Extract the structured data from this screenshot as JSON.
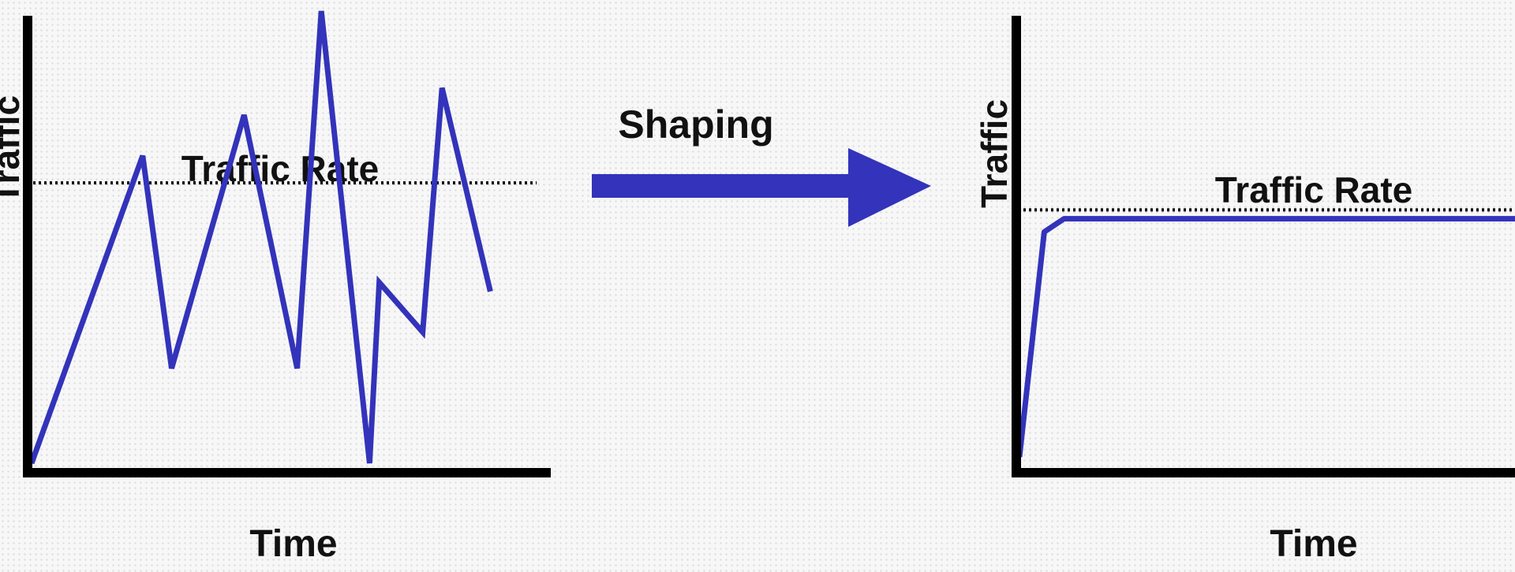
{
  "colors": {
    "line": "#3333bb",
    "axis": "#000000",
    "rate_line": "#000000",
    "arrow": "#3333bb"
  },
  "arrow_label": "Shaping",
  "before": {
    "y_axis_label": "Traffic",
    "x_axis_label": "Time",
    "rate_label": "Traffic Rate",
    "rate_level": 0.62,
    "traffic": [
      [
        0.0,
        0.0
      ],
      [
        0.23,
        0.68
      ],
      [
        0.29,
        0.21
      ],
      [
        0.44,
        0.77
      ],
      [
        0.55,
        0.21
      ],
      [
        0.6,
        1.0
      ],
      [
        0.7,
        0.0
      ],
      [
        0.72,
        0.4
      ],
      [
        0.81,
        0.29
      ],
      [
        0.85,
        0.83
      ],
      [
        0.95,
        0.38
      ]
    ]
  },
  "after": {
    "y_axis_label": "Traffic",
    "x_axis_label": "Time",
    "rate_label": "Traffic Rate",
    "rate_level": 0.56,
    "traffic": [
      [
        0.0,
        0.0
      ],
      [
        0.05,
        0.51
      ],
      [
        0.09,
        0.54
      ],
      [
        1.0,
        0.54
      ]
    ]
  }
}
